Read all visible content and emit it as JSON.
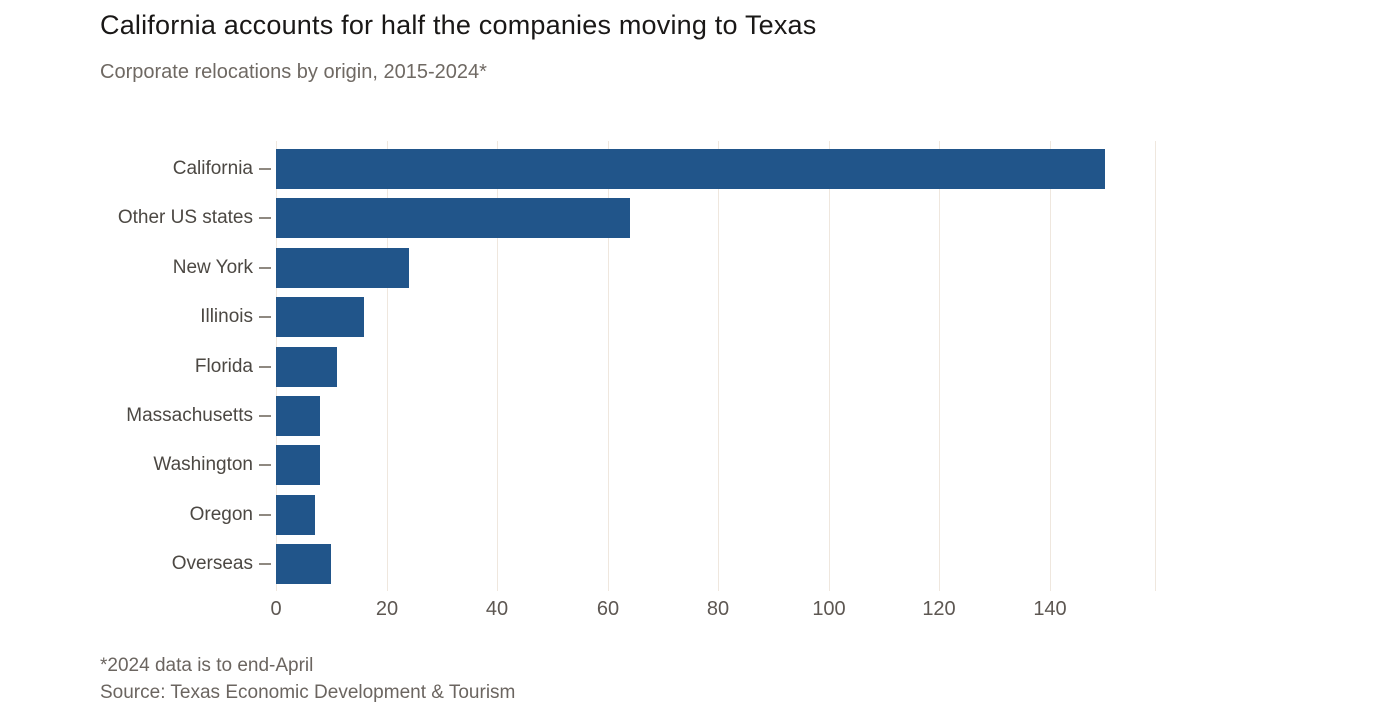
{
  "header": {
    "title": "California accounts for half the companies moving to Texas",
    "subtitle": "Corporate relocations by origin, 2015-2024*"
  },
  "footer": {
    "note": "*2024 data is to end-April",
    "source": "Source: Texas Economic Development & Tourism"
  },
  "chart_data": {
    "type": "bar",
    "orientation": "horizontal",
    "title": "California accounts for half the companies moving to Texas",
    "subtitle": "Corporate relocations by origin, 2015-2024*",
    "categories": [
      "California",
      "Other US states",
      "New York",
      "Illinois",
      "Florida",
      "Massachusetts",
      "Washington",
      "Oregon",
      "Overseas"
    ],
    "values": [
      150,
      64,
      24,
      16,
      11,
      8,
      8,
      7,
      10
    ],
    "xlabel": "",
    "ylabel": "",
    "xlim": [
      0,
      159
    ],
    "xticks": [
      0,
      20,
      40,
      60,
      80,
      100,
      120,
      140
    ],
    "grid": "vertical-gridlines",
    "legend": "none",
    "note": "*2024 data is to end-April",
    "source": "Source: Texas Economic Development & Tourism",
    "colors": {
      "bar": "#21558a",
      "gridline": "#efe7de",
      "category_tick": "#8f8981",
      "title_text": "#1a1817",
      "subtitle_text": "#6f6963",
      "category_text": "#4c4843",
      "axis_tick_text": "#5d5752",
      "footer_text": "#6b6560",
      "background": "#ffffff"
    }
  }
}
